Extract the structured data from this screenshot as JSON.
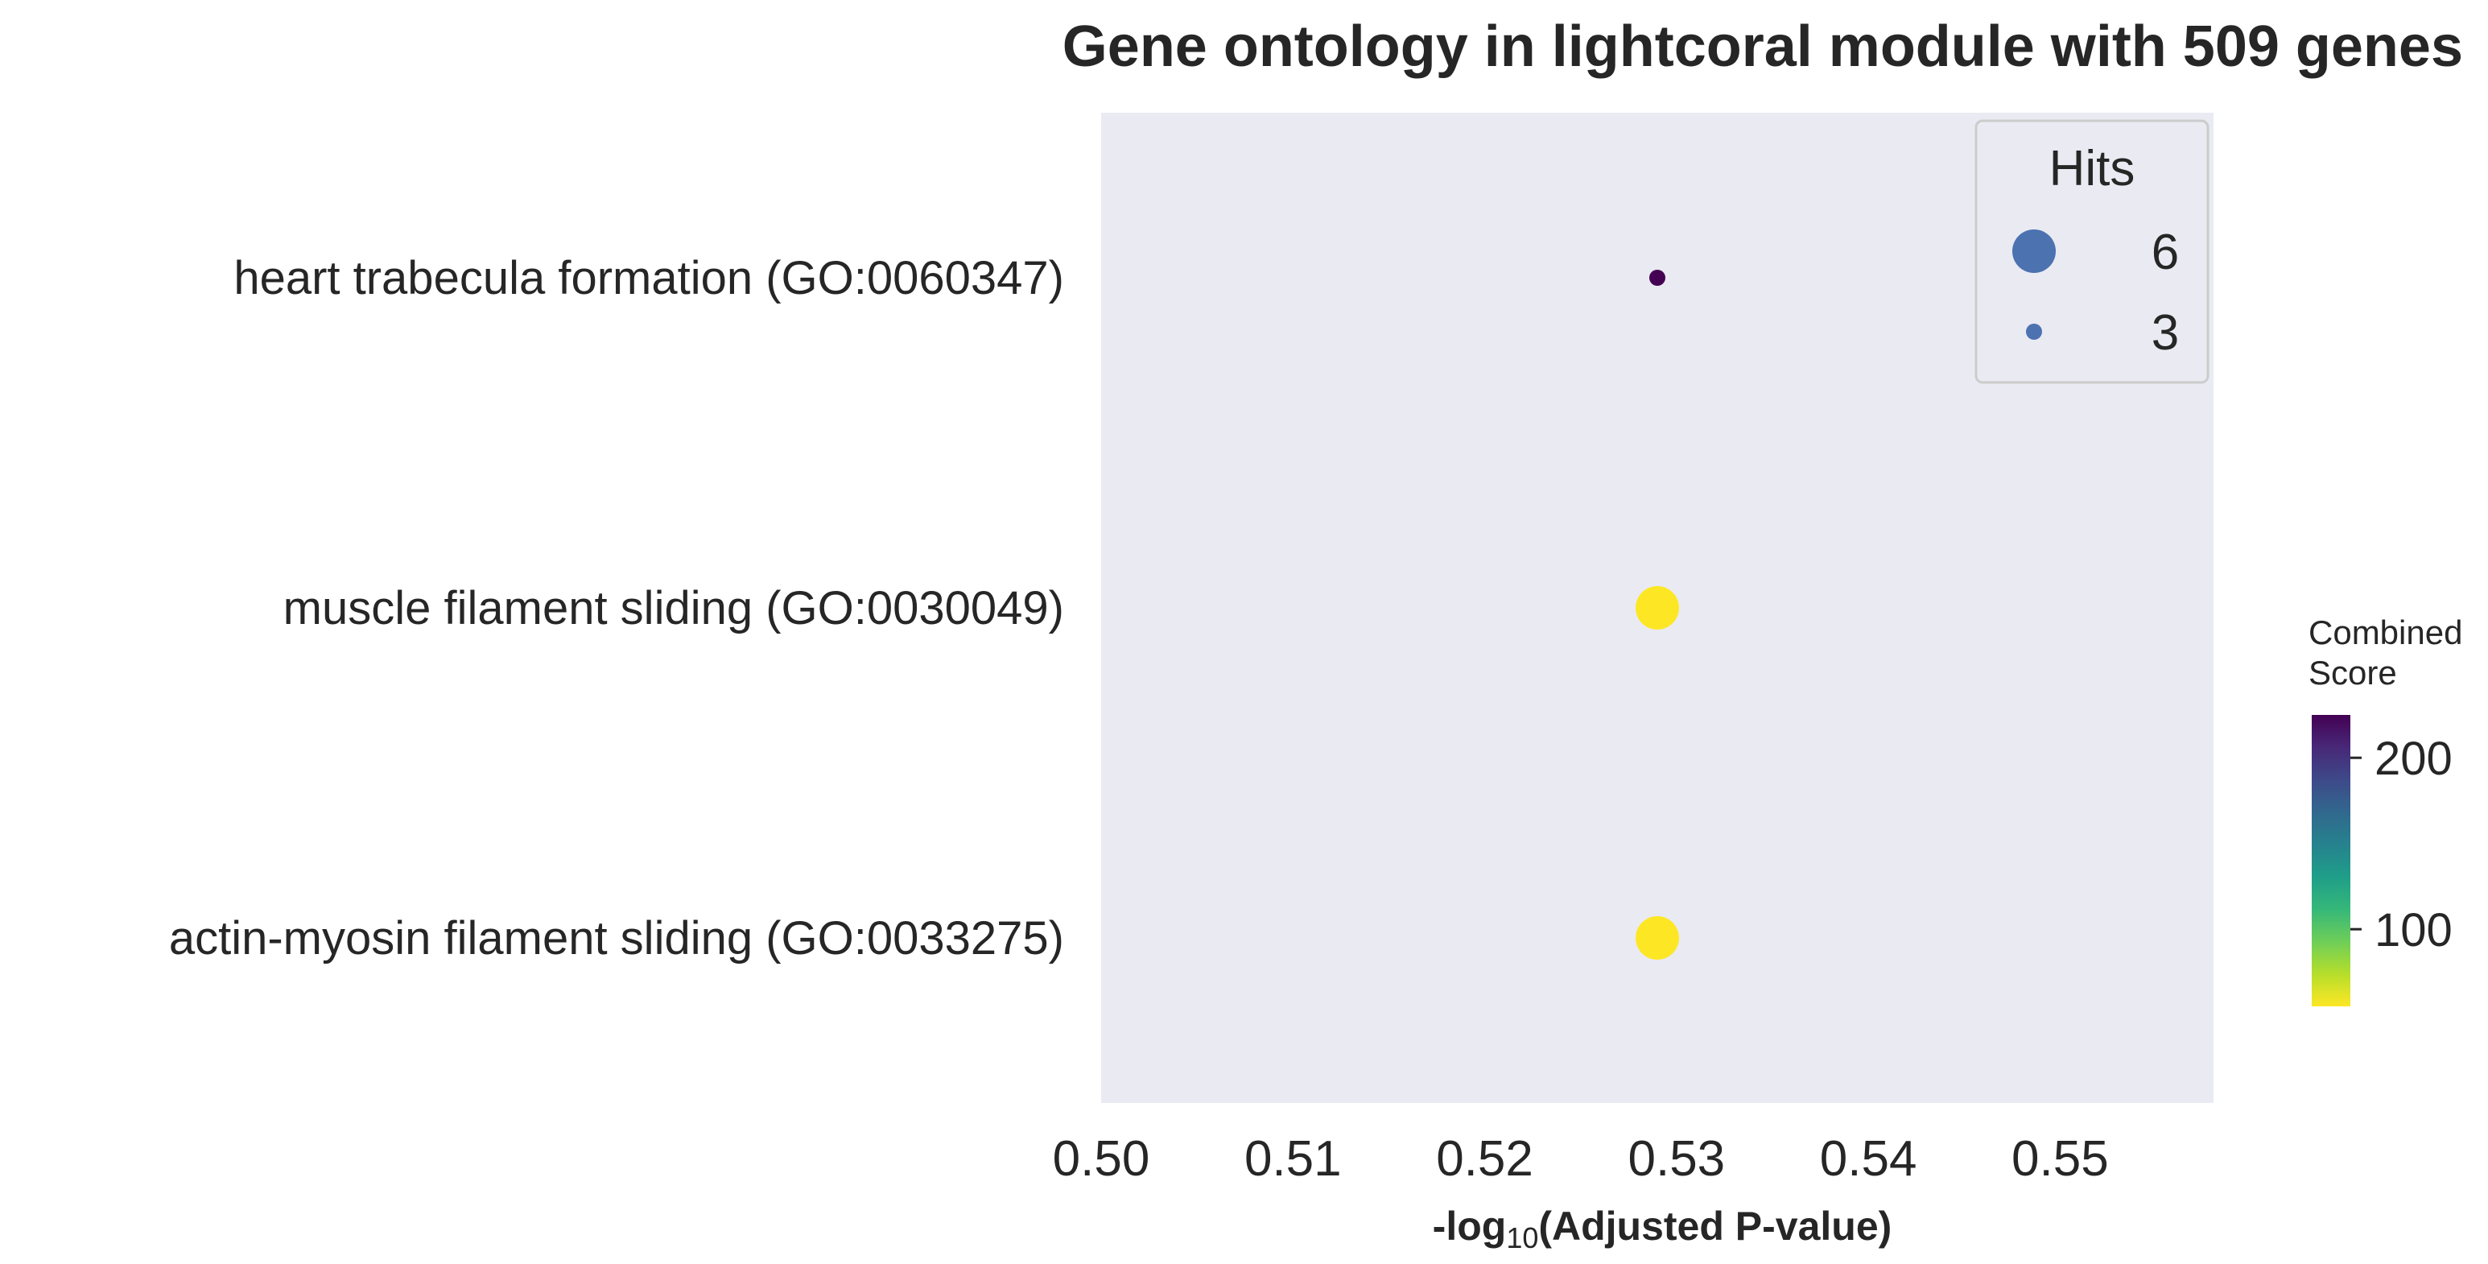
{
  "chart_data": {
    "type": "scatter",
    "title": "Gene ontology in lightcoral module with 509 genes",
    "xlabel": {
      "prefix": "-log",
      "subscript": "10",
      "suffix": "(Adjusted P-value)"
    },
    "ylabel": "",
    "xlim": [
      0.5,
      0.558
    ],
    "xticks": [
      "0.50",
      "0.51",
      "0.52",
      "0.53",
      "0.54",
      "0.55"
    ],
    "grid": false,
    "points": [
      {
        "term": "heart trabecula formation (GO:0060347)",
        "x": 0.529,
        "hits": 3,
        "combined_score": 222,
        "color": "#440154"
      },
      {
        "term": "muscle filament sliding (GO:0030049)",
        "x": 0.529,
        "hits": 6,
        "combined_score": 55,
        "color": "#fde725"
      },
      {
        "term": "actin-myosin filament sliding (GO:0033275)",
        "x": 0.529,
        "hits": 6,
        "combined_score": 55,
        "color": "#fde725"
      }
    ],
    "size_legend": {
      "title": "Hits",
      "placement": "top-right",
      "entries": [
        {
          "label": "6",
          "hits": 6
        },
        {
          "label": "3",
          "hits": 3
        }
      ],
      "marker_color": "#4c72b0"
    },
    "colorbar": {
      "title": "Combined\nScore",
      "title_lines": [
        "Combined",
        "Score"
      ],
      "colormap": "viridis_r",
      "range": [
        55,
        225
      ],
      "ticks": [
        {
          "value": 100,
          "label": "100"
        },
        {
          "value": 200,
          "label": "200"
        }
      ],
      "colors": [
        "#fde725",
        "#b5de2b",
        "#6ece58",
        "#35b779",
        "#1f9e89",
        "#26828e",
        "#31688e",
        "#3e4989",
        "#482878",
        "#440154"
      ]
    },
    "plot_background": "#eaeaf2"
  }
}
